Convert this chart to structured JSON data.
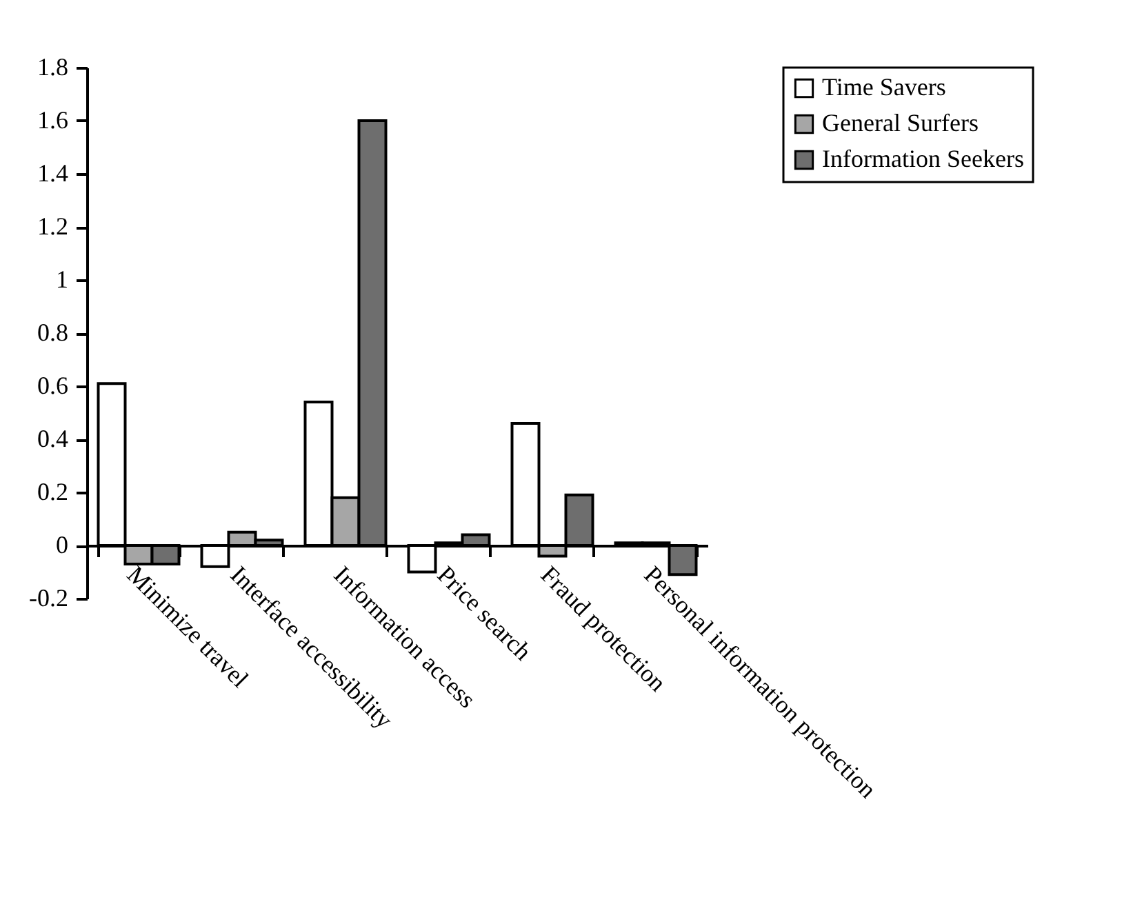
{
  "chart_data": {
    "type": "bar",
    "categories": [
      "Minimize travel",
      "Interface accessibility",
      "Information access",
      "Price search",
      "Fraud protection",
      "Personal information protection"
    ],
    "series": [
      {
        "name": "Time Savers",
        "color": "#ffffff",
        "values": [
          0.61,
          -0.08,
          0.54,
          -0.1,
          0.46,
          0.01
        ]
      },
      {
        "name": "General Surfers",
        "color": "#a6a6a6",
        "values": [
          -0.07,
          0.05,
          0.18,
          0.01,
          -0.04,
          0.01
        ]
      },
      {
        "name": "Information Seekers",
        "color": "#6e6e6e",
        "values": [
          -0.07,
          0.02,
          1.6,
          0.04,
          0.19,
          -0.11
        ]
      }
    ],
    "ylim": [
      -0.2,
      1.8
    ],
    "yticks": [
      -0.2,
      0,
      0.2,
      0.4,
      0.6,
      0.8,
      1,
      1.2,
      1.4,
      1.6,
      1.8
    ],
    "grid": false,
    "legend": "top right"
  }
}
